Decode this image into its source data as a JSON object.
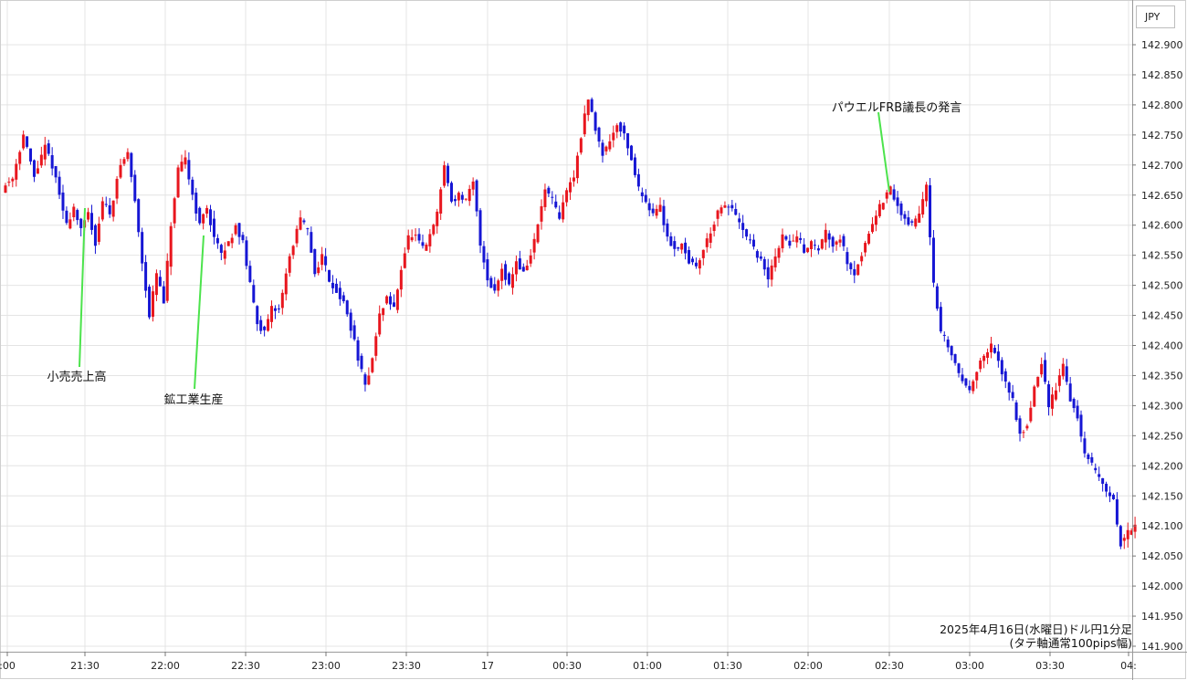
{
  "chart_data": {
    "type": "candlestick",
    "currency_label": "JPY",
    "caption_line1": "2025年4月16日(水曜日)ドル円1分足",
    "caption_line2": "(タテ軸通常100pips幅)",
    "ylim": [
      141.88,
      142.92
    ],
    "y_ticks": [
      "142.900",
      "142.850",
      "142.800",
      "142.750",
      "142.700",
      "142.650",
      "142.600",
      "142.550",
      "142.500",
      "142.450",
      "142.400",
      "142.350",
      "142.300",
      "142.250",
      "142.200",
      "142.150",
      "142.100",
      "142.050",
      "142.000",
      "141.950",
      "141.900"
    ],
    "x_ticks": [
      ":00",
      "21:30",
      "22:00",
      "22:30",
      "23:00",
      "23:30",
      "17",
      "00:30",
      "01:00",
      "01:30",
      "02:00",
      "02:30",
      "03:00",
      "03:30",
      "04:"
    ],
    "annotations": [
      {
        "label": "小売売上高",
        "time": "21:30"
      },
      {
        "label": "鉱工業生産",
        "time": "22:15"
      },
      {
        "label": "パウエルFRB議長の発言",
        "time": "02:30"
      }
    ],
    "up_color": "#e8161e",
    "down_color": "#1616d4",
    "annotation_line_color": "#4ce34c",
    "path_points": [
      [
        0,
        142.66
      ],
      [
        3,
        142.68
      ],
      [
        6,
        142.75
      ],
      [
        9,
        142.68
      ],
      [
        12,
        142.73
      ],
      [
        14,
        142.7
      ],
      [
        16,
        142.65
      ],
      [
        18,
        142.6
      ],
      [
        20,
        142.63
      ],
      [
        22,
        142.59
      ],
      [
        24,
        142.62
      ],
      [
        26,
        142.57
      ],
      [
        28,
        142.64
      ],
      [
        30,
        142.62
      ],
      [
        33,
        142.7
      ],
      [
        35,
        142.72
      ],
      [
        37,
        142.64
      ],
      [
        39,
        142.54
      ],
      [
        41,
        142.45
      ],
      [
        43,
        142.52
      ],
      [
        45,
        142.47
      ],
      [
        47,
        142.6
      ],
      [
        49,
        142.69
      ],
      [
        51,
        142.71
      ],
      [
        53,
        142.65
      ],
      [
        55,
        142.6
      ],
      [
        57,
        142.63
      ],
      [
        59,
        142.58
      ],
      [
        61,
        142.55
      ],
      [
        63,
        142.57
      ],
      [
        65,
        142.6
      ],
      [
        67,
        142.57
      ],
      [
        69,
        142.5
      ],
      [
        71,
        142.44
      ],
      [
        73,
        142.42
      ],
      [
        75,
        142.46
      ],
      [
        77,
        142.46
      ],
      [
        79,
        142.52
      ],
      [
        81,
        142.57
      ],
      [
        83,
        142.61
      ],
      [
        85,
        142.59
      ],
      [
        87,
        142.52
      ],
      [
        89,
        142.55
      ],
      [
        91,
        142.51
      ],
      [
        93,
        142.49
      ],
      [
        95,
        142.47
      ],
      [
        97,
        142.43
      ],
      [
        99,
        142.38
      ],
      [
        101,
        142.33
      ],
      [
        103,
        142.38
      ],
      [
        105,
        142.45
      ],
      [
        107,
        142.48
      ],
      [
        109,
        142.46
      ],
      [
        111,
        142.53
      ],
      [
        113,
        142.58
      ],
      [
        115,
        142.58
      ],
      [
        117,
        142.56
      ],
      [
        119,
        142.58
      ],
      [
        121,
        142.62
      ],
      [
        123,
        142.7
      ],
      [
        125,
        142.64
      ],
      [
        127,
        142.65
      ],
      [
        129,
        142.64
      ],
      [
        131,
        142.67
      ],
      [
        133,
        142.57
      ],
      [
        135,
        142.51
      ],
      [
        137,
        142.49
      ],
      [
        139,
        142.53
      ],
      [
        141,
        142.5
      ],
      [
        143,
        142.54
      ],
      [
        145,
        142.52
      ],
      [
        147,
        142.55
      ],
      [
        149,
        142.6
      ],
      [
        151,
        142.66
      ],
      [
        153,
        142.64
      ],
      [
        155,
        142.61
      ],
      [
        157,
        142.66
      ],
      [
        159,
        142.68
      ],
      [
        161,
        142.75
      ],
      [
        163,
        142.81
      ],
      [
        165,
        142.76
      ],
      [
        167,
        142.72
      ],
      [
        169,
        142.74
      ],
      [
        171,
        142.77
      ],
      [
        173,
        142.75
      ],
      [
        175,
        142.71
      ],
      [
        177,
        142.66
      ],
      [
        179,
        142.64
      ],
      [
        181,
        142.62
      ],
      [
        183,
        142.63
      ],
      [
        185,
        142.58
      ],
      [
        187,
        142.56
      ],
      [
        189,
        142.57
      ],
      [
        191,
        142.54
      ],
      [
        193,
        142.53
      ],
      [
        195,
        142.56
      ],
      [
        197,
        142.59
      ],
      [
        199,
        142.62
      ],
      [
        201,
        142.63
      ],
      [
        203,
        142.63
      ],
      [
        205,
        142.6
      ],
      [
        207,
        142.58
      ],
      [
        209,
        142.56
      ],
      [
        211,
        142.54
      ],
      [
        213,
        142.51
      ],
      [
        215,
        142.55
      ],
      [
        217,
        142.58
      ],
      [
        219,
        142.57
      ],
      [
        221,
        142.58
      ],
      [
        223,
        142.56
      ],
      [
        225,
        142.57
      ],
      [
        227,
        142.56
      ],
      [
        229,
        142.59
      ],
      [
        231,
        142.57
      ],
      [
        233,
        142.58
      ],
      [
        235,
        142.54
      ],
      [
        237,
        142.52
      ],
      [
        239,
        142.55
      ],
      [
        241,
        142.59
      ],
      [
        243,
        142.62
      ],
      [
        245,
        142.64
      ],
      [
        247,
        142.66
      ],
      [
        249,
        142.63
      ],
      [
        251,
        142.61
      ],
      [
        253,
        142.6
      ],
      [
        255,
        142.62
      ],
      [
        257,
        142.67
      ],
      [
        259,
        142.5
      ],
      [
        261,
        142.42
      ],
      [
        263,
        142.4
      ],
      [
        265,
        142.37
      ],
      [
        267,
        142.34
      ],
      [
        269,
        142.33
      ],
      [
        271,
        142.36
      ],
      [
        273,
        142.38
      ],
      [
        275,
        142.4
      ],
      [
        277,
        142.37
      ],
      [
        279,
        142.34
      ],
      [
        281,
        142.31
      ],
      [
        283,
        142.25
      ],
      [
        285,
        142.27
      ],
      [
        287,
        142.33
      ],
      [
        289,
        142.37
      ],
      [
        291,
        142.3
      ],
      [
        293,
        142.33
      ],
      [
        295,
        142.37
      ],
      [
        297,
        142.31
      ],
      [
        299,
        142.28
      ],
      [
        301,
        142.22
      ],
      [
        303,
        142.2
      ],
      [
        305,
        142.18
      ],
      [
        307,
        142.16
      ],
      [
        309,
        142.14
      ],
      [
        311,
        142.07
      ],
      [
        313,
        142.09
      ],
      [
        315,
        142.1
      ]
    ]
  }
}
